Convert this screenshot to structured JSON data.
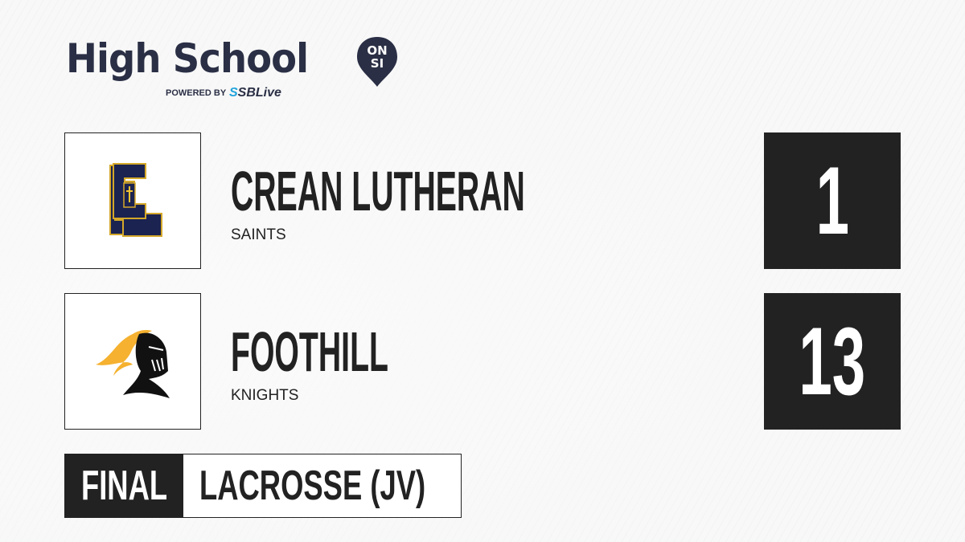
{
  "brand": {
    "title": "High School",
    "badge_top": "ON",
    "badge_bottom": "SI",
    "powered_by": "POWERED BY",
    "partner_prefix": "S",
    "partner": "SBLive"
  },
  "teams": [
    {
      "name": "CREAN LUTHERAN",
      "mascot": "SAINTS",
      "score": "1",
      "logo": "crean-lutheran-cl-logo"
    },
    {
      "name": "FOOTHILL",
      "mascot": "KNIGHTS",
      "score": "13",
      "logo": "foothill-knight-logo"
    }
  ],
  "status": "FINAL",
  "sport": "LACROSSE (JV)",
  "colors": {
    "dark": "#222222",
    "brand_navy": "#2a2f45",
    "sbl_blue": "#1fa3dc",
    "cl_navy": "#1b2350",
    "cl_gold": "#d4a82a",
    "knight_gold": "#f5b12f"
  }
}
